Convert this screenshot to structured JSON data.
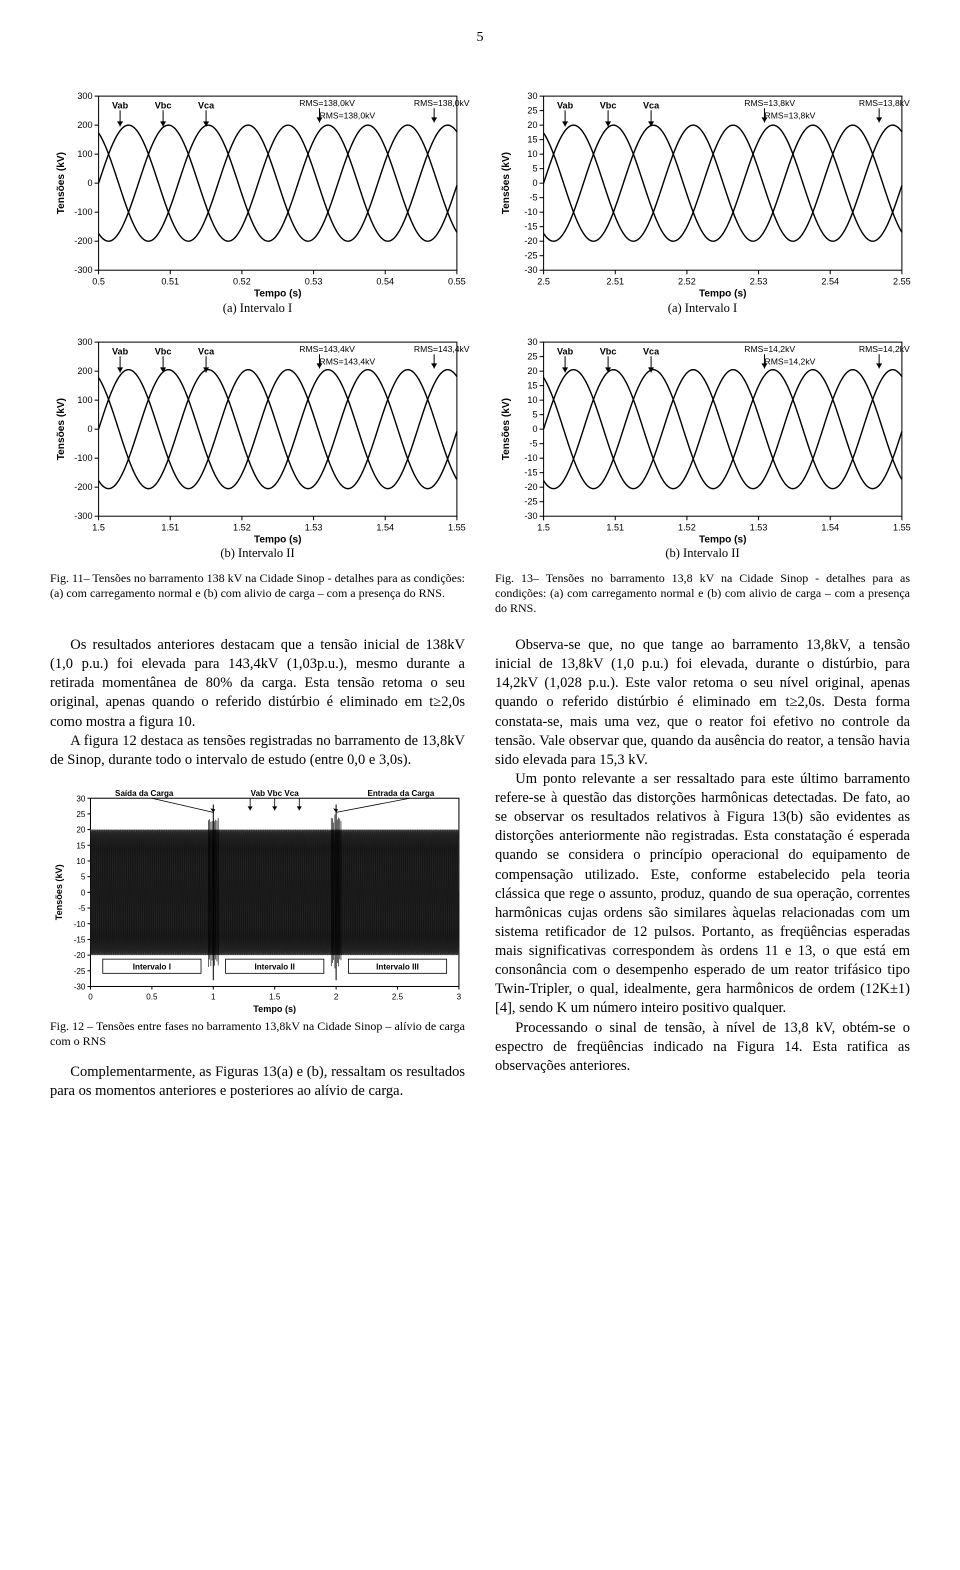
{
  "page_number": "5",
  "charts": {
    "top_left": {
      "type": "line",
      "labels": [
        "Vab",
        "Vbc",
        "Vca"
      ],
      "rms_annotations": [
        "RMS=138,0kV",
        "RMS=138,0kV",
        "RMS=138,0kV"
      ],
      "xlim": [
        0.5,
        0.55
      ],
      "xticks": [
        0.5,
        0.51,
        0.52,
        0.53,
        0.54,
        0.55
      ],
      "ylim": [
        -300,
        300
      ],
      "yticks": [
        -300,
        -200,
        -100,
        0,
        100,
        200,
        300
      ],
      "xlabel": "Tempo (s)",
      "ylabel": "Tensões (kV)",
      "amplitude": 200,
      "period": 0.0167,
      "phases_deg": [
        0,
        120,
        240
      ],
      "line_color": "#000000",
      "line_width": 1.4,
      "background_color": "#ffffff",
      "grid_color": "#e5e5e5",
      "label_fontsize": 10,
      "tick_fontsize": 9,
      "caption": "(a) Intervalo I"
    },
    "top_right": {
      "type": "line",
      "labels": [
        "Vab",
        "Vbc",
        "Vca"
      ],
      "rms_annotations": [
        "RMS=13,8kV",
        "RMS=13,8kV",
        "RMS=13,8kV"
      ],
      "xlim": [
        2.5,
        2.55
      ],
      "xticks": [
        2.5,
        2.51,
        2.52,
        2.53,
        2.54,
        2.55
      ],
      "ylim": [
        -30,
        30
      ],
      "yticks": [
        -30,
        -25,
        -20,
        -15,
        -10,
        -5,
        0,
        5,
        10,
        15,
        20,
        25,
        30
      ],
      "xlabel": "Tempo (s)",
      "ylabel": "Tensões (kV)",
      "amplitude": 20,
      "period": 0.0167,
      "phases_deg": [
        0,
        120,
        240
      ],
      "line_color": "#000000",
      "line_width": 1.4,
      "background_color": "#ffffff",
      "grid_color": "#e5e5e5",
      "label_fontsize": 10,
      "tick_fontsize": 9,
      "caption": "(a) Intervalo I"
    },
    "mid_left": {
      "type": "line",
      "labels": [
        "Vab",
        "Vbc",
        "Vca"
      ],
      "rms_annotations": [
        "RMS=143,4kV",
        "RMS=143,4kV",
        "RMS=143,4kV"
      ],
      "xlim": [
        1.5,
        1.55
      ],
      "xticks": [
        1.5,
        1.51,
        1.52,
        1.53,
        1.54,
        1.55
      ],
      "ylim": [
        -300,
        300
      ],
      "yticks": [
        -300,
        -200,
        -100,
        0,
        100,
        200,
        300
      ],
      "xlabel": "Tempo (s)",
      "ylabel": "Tensões (kV)",
      "amplitude": 205,
      "period": 0.0167,
      "phases_deg": [
        0,
        120,
        240
      ],
      "line_color": "#000000",
      "line_width": 1.4,
      "background_color": "#ffffff",
      "grid_color": "#e5e5e5",
      "label_fontsize": 10,
      "tick_fontsize": 9,
      "caption": "(b) Intervalo II"
    },
    "mid_right": {
      "type": "line",
      "labels": [
        "Vab",
        "Vbc",
        "Vca"
      ],
      "rms_annotations": [
        "RMS=14,2kV",
        "RMS=14,2kV",
        "RMS=14,2kV"
      ],
      "xlim": [
        1.5,
        1.55
      ],
      "xticks": [
        1.5,
        1.51,
        1.52,
        1.53,
        1.54,
        1.55
      ],
      "ylim": [
        -30,
        30
      ],
      "yticks": [
        -30,
        -25,
        -20,
        -15,
        -10,
        -5,
        0,
        5,
        10,
        15,
        20,
        25,
        30
      ],
      "xlabel": "Tempo (s)",
      "ylabel": "Tensões (kV)",
      "amplitude": 20.5,
      "period": 0.0167,
      "phases_deg": [
        0,
        120,
        240
      ],
      "line_color": "#000000",
      "line_width": 1.4,
      "background_color": "#ffffff",
      "grid_color": "#e5e5e5",
      "label_fontsize": 10,
      "tick_fontsize": 9,
      "caption": "(b) Intervalo II"
    }
  },
  "fig11_caption": "Fig. 11– Tensões no barramento 138 kV na Cidade Sinop - detalhes para as condições: (a) com carregamento normal e (b) com alivio de carga – com a presença do RNS.",
  "fig13_caption": "Fig. 13– Tensões no barramento 13,8 kV na Cidade Sinop - detalhes para as condições: (a) com carregamento normal e (b) com alivio de carga – com a presença do RNS.",
  "left_col": {
    "p1": "Os resultados anteriores destacam que a tensão inicial de 138kV (1,0 p.u.) foi elevada para 143,4kV (1,03p.u.), mesmo durante a retirada momentânea de 80% da carga. Esta tensão retoma o seu original, apenas quando o referido distúrbio é eliminado em t≥2,0s como mostra a figura 10.",
    "p2": "A figura 12 destaca as tensões registradas no barramento de 13,8kV de Sinop, durante todo o intervalo de estudo (entre 0,0 e 3,0s).",
    "fig12": {
      "type": "line",
      "top_labels_left": "Saída da Carga",
      "top_labels_mid": "Vab Vbc Vca",
      "top_labels_right": "Entrada da Carga",
      "interval_labels": [
        "Intervalo I",
        "Intervalo II",
        "Intervalo III"
      ],
      "xlim": [
        0,
        3
      ],
      "xticks": [
        0,
        0.5,
        1,
        1.5,
        2,
        2.5,
        3
      ],
      "ylim": [
        -30,
        30
      ],
      "yticks": [
        -30,
        -25,
        -20,
        -15,
        -10,
        -5,
        0,
        5,
        10,
        15,
        20,
        25,
        30
      ],
      "xlabel": "Tempo (s)",
      "ylabel": "Tensões (kV)",
      "amplitude": 20,
      "transient_positions": [
        1.0,
        2.0
      ],
      "line_color": "#000000",
      "line_width": 0.5,
      "background_color": "#ffffff",
      "grid_color": "#d9d9d9",
      "label_fontsize": 9,
      "tick_fontsize": 8
    },
    "fig12_caption": "Fig. 12 – Tensões entre fases no barramento 13,8kV na Cidade Sinop – alívio de carga com o RNS",
    "p3": "Complementarmente, as Figuras 13(a) e (b), ressaltam os resultados para os momentos anteriores e posteriores ao alívio de carga."
  },
  "right_col": {
    "p1": "Observa-se que, no que tange ao barramento 13,8kV, a tensão inicial de 13,8kV (1,0 p.u.) foi elevada, durante o distúrbio, para 14,2kV (1,028 p.u.). Este valor retoma o seu nível original, apenas quando o referido distúrbio é eliminado em t≥2,0s. Desta forma constata-se, mais uma vez, que o reator foi efetivo no controle da tensão. Vale observar que, quando da ausência do reator, a tensão havia sido elevada para 15,3 kV.",
    "p2": "Um ponto relevante a ser ressaltado para este último barramento refere-se à questão das distorções harmônicas detectadas. De fato, ao se observar os resultados relativos à Figura 13(b) são evidentes as distorções anteriormente não registradas. Esta constatação é esperada quando se considera o princípio operacional do equipamento de compensação utilizado. Este, conforme estabelecido pela teoria clássica que rege o assunto, produz, quando de sua operação, correntes harmônicas cujas ordens são similares àquelas relacionadas com um sistema retificador de 12 pulsos. Portanto, as freqüências esperadas mais significativas correspondem às ordens 11 e 13, o que está em consonância com o desempenho esperado de um reator trifásico tipo Twin-Tripler, o qual, idealmente, gera harmônicos de ordem (12K±1) [4], sendo K um número inteiro positivo qualquer.",
    "p3": "Processando o sinal de tensão, à nível de 13,8 kV, obtém-se o espectro de freqüências indicado na Figura 14. Esta ratifica as observações anteriores."
  }
}
